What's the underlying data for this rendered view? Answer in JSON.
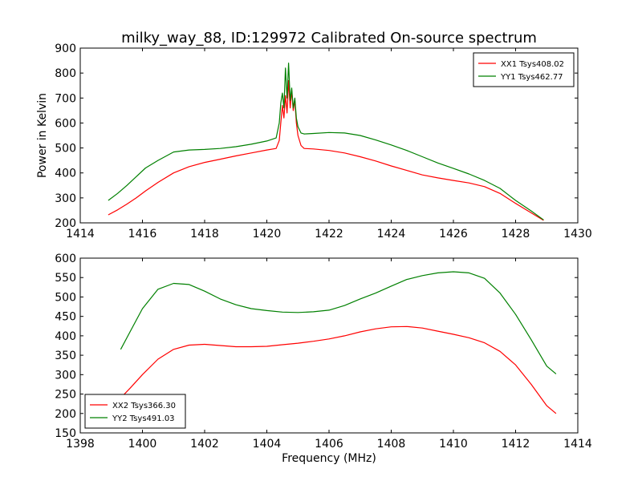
{
  "chart_data": [
    {
      "type": "line",
      "title": "milky_way_88, ID:129972 Calibrated On-source spectrum",
      "xlabel": "",
      "ylabel": "Power in Kelvin",
      "xlim": [
        1414,
        1430
      ],
      "ylim": [
        200,
        900
      ],
      "xticks": [
        1414,
        1416,
        1418,
        1420,
        1422,
        1424,
        1426,
        1428,
        1430
      ],
      "yticks": [
        200,
        300,
        400,
        500,
        600,
        700,
        800,
        900
      ],
      "grid": false,
      "legend_position": "top-right",
      "series": [
        {
          "name": "XX1 Tsys408.02",
          "color": "#ff0000",
          "points": [
            [
              1414.9,
              232
            ],
            [
              1415.2,
              252
            ],
            [
              1415.5,
              275
            ],
            [
              1415.8,
              300
            ],
            [
              1416.1,
              328
            ],
            [
              1416.5,
              362
            ],
            [
              1417.0,
              400
            ],
            [
              1417.5,
              425
            ],
            [
              1418.0,
              442
            ],
            [
              1418.5,
              455
            ],
            [
              1419.0,
              468
            ],
            [
              1419.5,
              480
            ],
            [
              1420.0,
              492
            ],
            [
              1420.3,
              498
            ],
            [
              1420.4,
              530
            ],
            [
              1420.45,
              600
            ],
            [
              1420.5,
              670
            ],
            [
              1420.55,
              620
            ],
            [
              1420.6,
              710
            ],
            [
              1420.65,
              640
            ],
            [
              1420.7,
              770
            ],
            [
              1420.75,
              660
            ],
            [
              1420.8,
              730
            ],
            [
              1420.85,
              650
            ],
            [
              1420.9,
              690
            ],
            [
              1420.95,
              600
            ],
            [
              1421.0,
              550
            ],
            [
              1421.1,
              510
            ],
            [
              1421.2,
              498
            ],
            [
              1421.5,
              496
            ],
            [
              1422.0,
              490
            ],
            [
              1422.5,
              480
            ],
            [
              1423.0,
              465
            ],
            [
              1423.5,
              448
            ],
            [
              1424.0,
              428
            ],
            [
              1424.5,
              410
            ],
            [
              1425.0,
              392
            ],
            [
              1425.5,
              380
            ],
            [
              1426.0,
              370
            ],
            [
              1426.5,
              360
            ],
            [
              1427.0,
              345
            ],
            [
              1427.5,
              318
            ],
            [
              1428.0,
              278
            ],
            [
              1428.5,
              240
            ],
            [
              1428.9,
              210
            ]
          ]
        },
        {
          "name": "YY1 Tsys462.77",
          "color": "#008000",
          "points": [
            [
              1414.9,
              290
            ],
            [
              1415.2,
              318
            ],
            [
              1415.5,
              350
            ],
            [
              1415.8,
              385
            ],
            [
              1416.1,
              420
            ],
            [
              1416.5,
              450
            ],
            [
              1417.0,
              484
            ],
            [
              1417.5,
              492
            ],
            [
              1418.0,
              494
            ],
            [
              1418.5,
              498
            ],
            [
              1419.0,
              505
            ],
            [
              1419.5,
              515
            ],
            [
              1420.0,
              528
            ],
            [
              1420.3,
              540
            ],
            [
              1420.4,
              600
            ],
            [
              1420.45,
              680
            ],
            [
              1420.5,
              720
            ],
            [
              1420.55,
              660
            ],
            [
              1420.6,
              820
            ],
            [
              1420.65,
              700
            ],
            [
              1420.7,
              840
            ],
            [
              1420.75,
              690
            ],
            [
              1420.8,
              740
            ],
            [
              1420.85,
              660
            ],
            [
              1420.9,
              700
            ],
            [
              1420.95,
              620
            ],
            [
              1421.0,
              585
            ],
            [
              1421.1,
              560
            ],
            [
              1421.2,
              556
            ],
            [
              1421.5,
              558
            ],
            [
              1422.0,
              562
            ],
            [
              1422.5,
              560
            ],
            [
              1423.0,
              550
            ],
            [
              1423.5,
              532
            ],
            [
              1424.0,
              512
            ],
            [
              1424.5,
              490
            ],
            [
              1425.0,
              465
            ],
            [
              1425.5,
              440
            ],
            [
              1426.0,
              418
            ],
            [
              1426.5,
              396
            ],
            [
              1427.0,
              370
            ],
            [
              1427.5,
              338
            ],
            [
              1428.0,
              290
            ],
            [
              1428.5,
              248
            ],
            [
              1428.9,
              212
            ]
          ]
        }
      ]
    },
    {
      "type": "line",
      "title": "",
      "xlabel": "Frequency (MHz)",
      "ylabel": "",
      "xlim": [
        1398,
        1414
      ],
      "ylim": [
        150,
        600
      ],
      "xticks": [
        1398,
        1400,
        1402,
        1404,
        1406,
        1408,
        1410,
        1412,
        1414
      ],
      "yticks": [
        150,
        200,
        250,
        300,
        350,
        400,
        450,
        500,
        550,
        600
      ],
      "grid": false,
      "legend_position": "bottom-left",
      "series": [
        {
          "name": "XX2 Tsys366.30",
          "color": "#ff0000",
          "points": [
            [
              1399.3,
              240
            ],
            [
              1399.6,
              265
            ],
            [
              1400.0,
              300
            ],
            [
              1400.5,
              340
            ],
            [
              1401.0,
              365
            ],
            [
              1401.5,
              376
            ],
            [
              1402.0,
              378
            ],
            [
              1402.5,
              375
            ],
            [
              1403.0,
              372
            ],
            [
              1403.5,
              372
            ],
            [
              1404.0,
              373
            ],
            [
              1404.5,
              377
            ],
            [
              1405.0,
              381
            ],
            [
              1405.5,
              386
            ],
            [
              1406.0,
              392
            ],
            [
              1406.5,
              400
            ],
            [
              1407.0,
              410
            ],
            [
              1407.5,
              418
            ],
            [
              1408.0,
              423
            ],
            [
              1408.5,
              424
            ],
            [
              1409.0,
              420
            ],
            [
              1409.5,
              412
            ],
            [
              1410.0,
              404
            ],
            [
              1410.5,
              395
            ],
            [
              1411.0,
              382
            ],
            [
              1411.5,
              360
            ],
            [
              1412.0,
              325
            ],
            [
              1412.5,
              275
            ],
            [
              1413.0,
              220
            ],
            [
              1413.3,
              200
            ]
          ]
        },
        {
          "name": "YY2 Tsys491.03",
          "color": "#008000",
          "points": [
            [
              1399.3,
              365
            ],
            [
              1399.6,
              410
            ],
            [
              1400.0,
              470
            ],
            [
              1400.5,
              520
            ],
            [
              1401.0,
              535
            ],
            [
              1401.5,
              532
            ],
            [
              1402.0,
              515
            ],
            [
              1402.5,
              495
            ],
            [
              1403.0,
              480
            ],
            [
              1403.5,
              470
            ],
            [
              1404.0,
              465
            ],
            [
              1404.5,
              461
            ],
            [
              1405.0,
              460
            ],
            [
              1405.5,
              462
            ],
            [
              1406.0,
              466
            ],
            [
              1406.5,
              478
            ],
            [
              1407.0,
              495
            ],
            [
              1407.5,
              510
            ],
            [
              1408.0,
              528
            ],
            [
              1408.5,
              545
            ],
            [
              1409.0,
              555
            ],
            [
              1409.5,
              562
            ],
            [
              1410.0,
              565
            ],
            [
              1410.5,
              562
            ],
            [
              1411.0,
              548
            ],
            [
              1411.5,
              510
            ],
            [
              1412.0,
              455
            ],
            [
              1412.5,
              390
            ],
            [
              1413.0,
              322
            ],
            [
              1413.3,
              302
            ]
          ]
        }
      ]
    }
  ]
}
